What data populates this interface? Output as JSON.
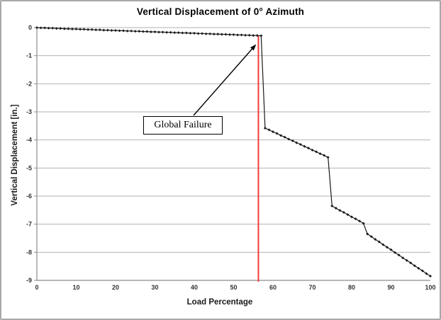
{
  "chart_data": {
    "type": "line",
    "title": "Vertical Displacement of 0° Azimuth",
    "xlabel": "Load Percentage",
    "ylabel": "Vertical Displacement [in.]",
    "xlim": [
      0,
      100
    ],
    "ylim": [
      -9,
      0
    ],
    "x_ticks": [
      0,
      10,
      20,
      30,
      40,
      50,
      60,
      70,
      80,
      90,
      100
    ],
    "y_ticks": [
      0,
      -1,
      -2,
      -3,
      -4,
      -5,
      -6,
      -7,
      -8,
      -9
    ],
    "grid": "horizontal",
    "legend": "none",
    "colors": {
      "series": "#1a1a1a",
      "gridline": "#b2b2b2",
      "axis": "#8c8c8c",
      "failure_line": "#f03c3c"
    },
    "series": [
      {
        "name": "Vertical Displacement",
        "marker": "diamond",
        "color": "#1a1a1a",
        "x": [
          0,
          1,
          2,
          3,
          4,
          5,
          6,
          7,
          8,
          9,
          10,
          11,
          12,
          13,
          14,
          15,
          16,
          17,
          18,
          19,
          20,
          21,
          22,
          23,
          24,
          25,
          26,
          27,
          28,
          29,
          30,
          31,
          32,
          33,
          34,
          35,
          36,
          37,
          38,
          39,
          40,
          41,
          42,
          43,
          44,
          45,
          46,
          47,
          48,
          49,
          50,
          51,
          52,
          53,
          54,
          55,
          56,
          57,
          58,
          59,
          60,
          61,
          62,
          63,
          64,
          65,
          66,
          67,
          68,
          69,
          70,
          71,
          72,
          73,
          74,
          75,
          76,
          77,
          78,
          79,
          80,
          81,
          82,
          83,
          84,
          85,
          86,
          87,
          88,
          89,
          90,
          91,
          92,
          93,
          94,
          95,
          96,
          97,
          98,
          99,
          100
        ],
        "y": [
          0,
          -0.01,
          -0.01,
          -0.02,
          -0.02,
          -0.03,
          -0.03,
          -0.04,
          -0.04,
          -0.05,
          -0.05,
          -0.06,
          -0.06,
          -0.07,
          -0.07,
          -0.08,
          -0.08,
          -0.09,
          -0.09,
          -0.1,
          -0.1,
          -0.11,
          -0.11,
          -0.12,
          -0.12,
          -0.13,
          -0.13,
          -0.14,
          -0.14,
          -0.15,
          -0.15,
          -0.16,
          -0.16,
          -0.17,
          -0.17,
          -0.18,
          -0.18,
          -0.19,
          -0.19,
          -0.2,
          -0.2,
          -0.21,
          -0.21,
          -0.22,
          -0.22,
          -0.23,
          -0.23,
          -0.24,
          -0.24,
          -0.25,
          -0.25,
          -0.26,
          -0.26,
          -0.27,
          -0.27,
          -0.28,
          -0.28,
          -0.29,
          -3.58,
          -3.64,
          -3.71,
          -3.77,
          -3.84,
          -3.9,
          -3.97,
          -4.03,
          -4.1,
          -4.16,
          -4.23,
          -4.29,
          -4.36,
          -4.42,
          -4.49,
          -4.55,
          -4.62,
          -6.35,
          -6.43,
          -6.51,
          -6.58,
          -6.66,
          -6.74,
          -6.81,
          -6.89,
          -6.97,
          -7.35,
          -7.44,
          -7.54,
          -7.63,
          -7.73,
          -7.82,
          -7.91,
          -8.01,
          -8.1,
          -8.2,
          -8.29,
          -8.38,
          -8.48,
          -8.57,
          -8.66,
          -8.76,
          -8.85
        ]
      }
    ],
    "failure_line": {
      "x": 56.3,
      "y_top": -0.3,
      "color": "#f03c3c"
    },
    "annotation": {
      "label": "Global Failure",
      "points_to_x": 57,
      "points_to_y": -0.29
    }
  }
}
